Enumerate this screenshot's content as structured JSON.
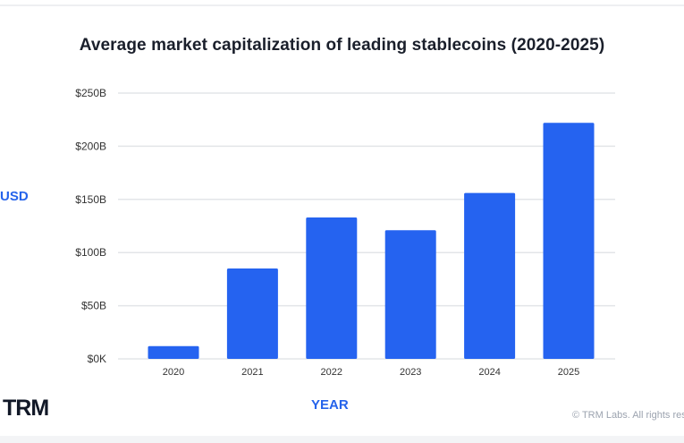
{
  "chart_data": {
    "type": "bar",
    "title": "Average market capitalization of leading stablecoins (2020-2025)",
    "xlabel": "YEAR",
    "ylabel": "USD",
    "categories": [
      "2020",
      "2021",
      "2022",
      "2023",
      "2024",
      "2025"
    ],
    "values": [
      12,
      85,
      133,
      121,
      156,
      222
    ],
    "unit": "billions USD",
    "ylim": [
      0,
      250
    ],
    "yticks": [
      0,
      50,
      100,
      150,
      200,
      250
    ],
    "ytick_labels": [
      "$0K",
      "$50B",
      "$100B",
      "$150B",
      "$200B",
      "$250B"
    ],
    "grid": true,
    "bar_color": "#2563f0",
    "axis_label_color": "#2563eb"
  },
  "branding": {
    "logo": "TRM",
    "copyright": "© TRM Labs. All rights reserved."
  }
}
